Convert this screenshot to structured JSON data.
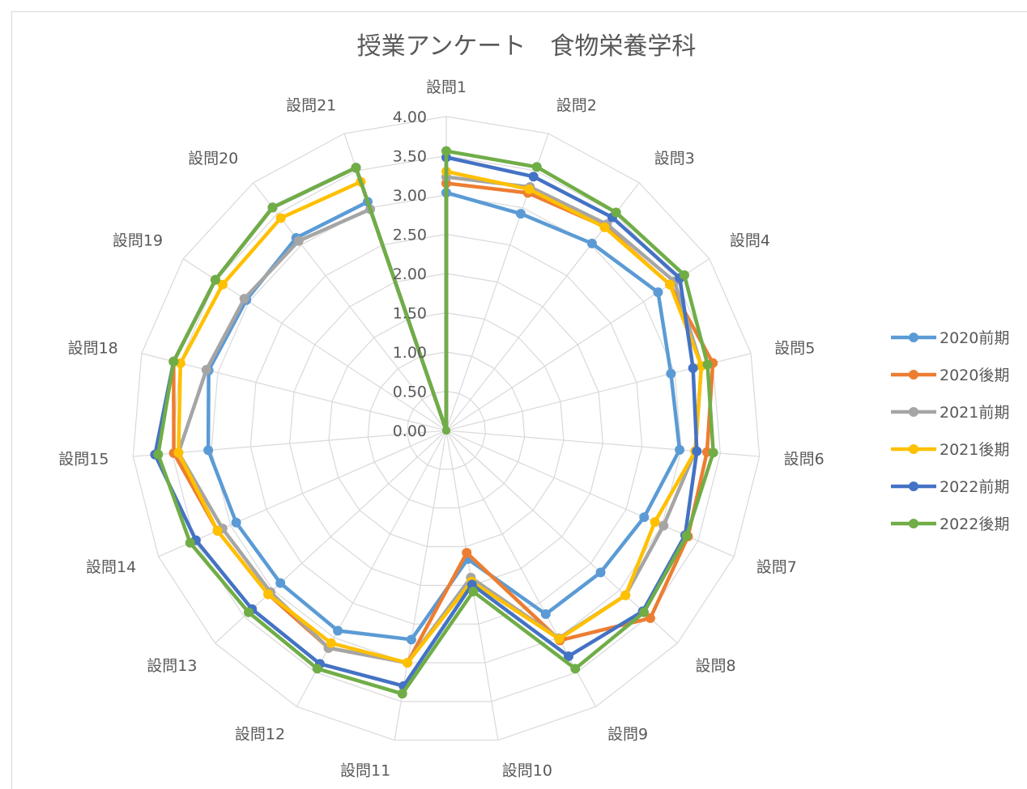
{
  "chart_data": {
    "type": "radar",
    "title": "授業アンケート　食物栄養学科",
    "categories": [
      "設問1",
      "設問2",
      "設問3",
      "設問4",
      "設問5",
      "設問6",
      "設問7",
      "設問8",
      "設問9",
      "設問10",
      "設問11",
      "設問12",
      "設問13",
      "設問14",
      "設問15",
      "設問18",
      "設問19",
      "設問20",
      "設問21"
    ],
    "ylim": [
      0,
      4
    ],
    "ticks": [
      "0.00",
      "0.50",
      "1.00",
      "1.50",
      "2.00",
      "2.50",
      "3.00",
      "3.50",
      "4.00"
    ],
    "tick_values": [
      0,
      0.5,
      1,
      1.5,
      2,
      2.5,
      3,
      3.5,
      4
    ],
    "grid": true,
    "legend_position": "right",
    "center_point": 0,
    "series": [
      {
        "name": "2020前期",
        "color": "#5b9bd5",
        "values": [
          3.03,
          2.92,
          3.02,
          3.22,
          2.95,
          2.98,
          2.75,
          2.67,
          2.66,
          1.66,
          2.7,
          2.9,
          2.87,
          2.92,
          3.04,
          3.12,
          3.04,
          3.11,
          3.08
        ]
      },
      {
        "name": "2020後期",
        "color": "#ed7d31",
        "values": [
          3.15,
          3.2,
          3.29,
          3.4,
          3.5,
          3.33,
          3.36,
          3.53,
          3.04,
          1.58,
          3.0,
          3.15,
          3.08,
          3.18,
          3.48,
          3.58,
          3.51,
          3.6,
          3.54
        ]
      },
      {
        "name": "2021前期",
        "color": "#a5a5a5",
        "values": [
          3.23,
          3.28,
          3.33,
          3.47,
          3.35,
          3.18,
          3.02,
          3.1,
          3.01,
          1.9,
          3.0,
          3.15,
          3.04,
          3.11,
          3.42,
          3.15,
          3.07,
          3.06,
          2.98
        ]
      },
      {
        "name": "2021後期",
        "color": "#ffc000",
        "values": [
          3.3,
          3.25,
          3.28,
          3.4,
          3.35,
          3.18,
          2.9,
          3.1,
          3.02,
          1.95,
          3.0,
          3.08,
          3.08,
          3.18,
          3.42,
          3.49,
          3.4,
          3.43,
          3.35
        ]
      },
      {
        "name": "2022前期",
        "color": "#4472c4",
        "values": [
          3.48,
          3.42,
          3.44,
          3.55,
          3.24,
          3.2,
          3.32,
          3.4,
          3.27,
          1.99,
          3.3,
          3.38,
          3.36,
          3.48,
          3.72,
          3.58,
          3.51,
          3.6,
          3.54
        ]
      },
      {
        "name": "2022後期",
        "color": "#70ad47",
        "values": [
          3.56,
          3.55,
          3.52,
          3.62,
          3.43,
          3.41,
          3.34,
          3.42,
          3.45,
          2.08,
          3.4,
          3.45,
          3.42,
          3.56,
          3.68,
          3.58,
          3.51,
          3.6,
          3.54
        ]
      }
    ]
  }
}
